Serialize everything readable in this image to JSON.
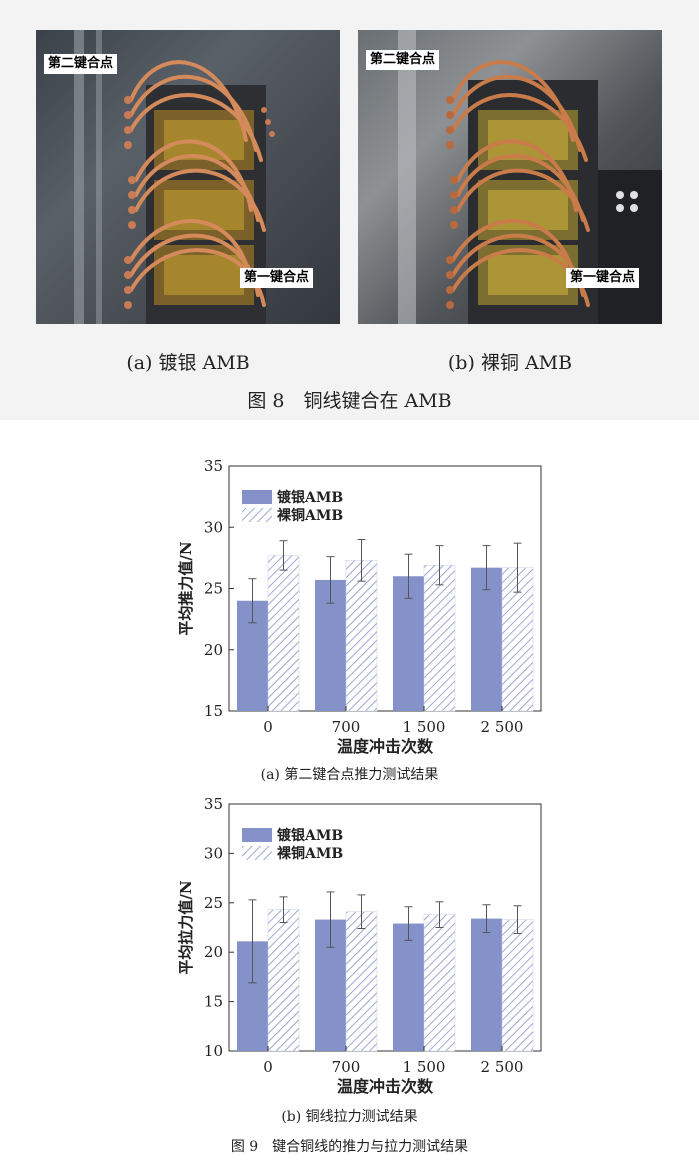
{
  "figure8": {
    "photo_a": {
      "label_top": "第二键合点",
      "label_bottom": "第一键合点"
    },
    "photo_b": {
      "label_top": "第二键合点",
      "label_bottom": "第一键合点"
    },
    "caption_a": "(a) 镀银 AMB",
    "caption_b": "(b) 裸铜 AMB",
    "caption": "图 8　铜线键合在 AMB"
  },
  "chart_data": [
    {
      "type": "bar",
      "categories": [
        "0",
        "700",
        "1 500",
        "2 500"
      ],
      "series": [
        {
          "name": "镀银AMB",
          "values": [
            24.0,
            25.7,
            26.0,
            26.7
          ],
          "errors": [
            1.8,
            1.9,
            1.8,
            1.8
          ],
          "color": "#8591c9",
          "pattern": "solid"
        },
        {
          "name": "裸铜AMB",
          "values": [
            27.7,
            27.3,
            26.9,
            26.7
          ],
          "errors": [
            1.2,
            1.7,
            1.6,
            2.0
          ],
          "color": "#8591c9",
          "pattern": "hatched"
        }
      ],
      "xlabel": "温度冲击次数",
      "ylabel": "平均推力值/N",
      "ylim": [
        15,
        35
      ],
      "yticks": [
        15,
        20,
        25,
        30,
        35
      ],
      "legend": "top-left",
      "caption": "(a) 第二键合点推力测试结果"
    },
    {
      "type": "bar",
      "categories": [
        "0",
        "700",
        "1 500",
        "2 500"
      ],
      "series": [
        {
          "name": "镀银AMB",
          "values": [
            21.1,
            23.3,
            22.9,
            23.4
          ],
          "errors": [
            4.2,
            2.8,
            1.7,
            1.4
          ],
          "color": "#8591c9",
          "pattern": "solid"
        },
        {
          "name": "裸铜AMB",
          "values": [
            24.3,
            24.1,
            23.8,
            23.3
          ],
          "errors": [
            1.3,
            1.7,
            1.3,
            1.4
          ],
          "color": "#8591c9",
          "pattern": "hatched"
        }
      ],
      "xlabel": "温度冲击次数",
      "ylabel": "平均拉力值/N",
      "ylim": [
        10,
        35
      ],
      "yticks": [
        10,
        15,
        20,
        25,
        30,
        35
      ],
      "legend": "top-left",
      "caption": "(b) 铜线拉力测试结果"
    }
  ],
  "figure9": {
    "caption": "图 9　键合铜线的推力与拉力测试结果"
  }
}
